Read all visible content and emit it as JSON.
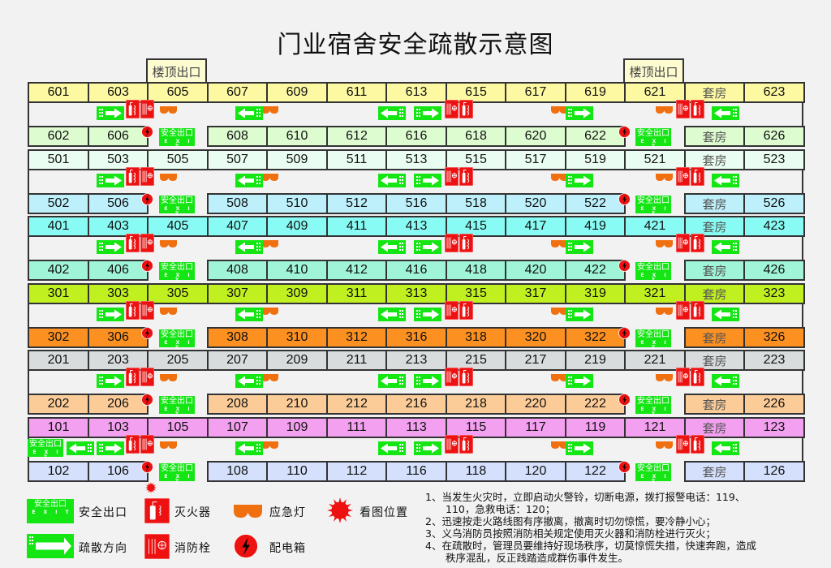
{
  "title": "门业宿舍安全疏散示意图",
  "roof_exit_label": "楼顶出口",
  "exit_sign": {
    "cn": "安全出口",
    "en": "E X I T"
  },
  "colors": {
    "exit_green": "#14e614",
    "fire_red": "#ee1111",
    "light_orange": "#f07010"
  },
  "floors": [
    {
      "floor": 6,
      "top_color": "#fdf9a2",
      "bottom_color": "#ddfcd0",
      "top": [
        "601",
        "603",
        "605",
        "607",
        "609",
        "611",
        "613",
        "615",
        "617",
        "619",
        "621",
        "套房",
        "623"
      ],
      "bottom": [
        "602",
        "606",
        null,
        "608",
        "610",
        "612",
        "616",
        "618",
        "620",
        "622",
        null,
        "套房",
        "626"
      ]
    },
    {
      "floor": 5,
      "top_color": "#eafdf2",
      "bottom_color": "#bdf0fa",
      "top": [
        "501",
        "503",
        "505",
        "507",
        "509",
        "511",
        "513",
        "515",
        "517",
        "519",
        "521",
        "套房",
        "523"
      ],
      "bottom": [
        "502",
        "506",
        null,
        "508",
        "510",
        "512",
        "516",
        "518",
        "520",
        "522",
        null,
        "套房",
        "526"
      ]
    },
    {
      "floor": 4,
      "top_color": "#88fcf4",
      "bottom_color": "#a0f4d8",
      "top": [
        "401",
        "403",
        "405",
        "407",
        "409",
        "411",
        "413",
        "415",
        "417",
        "419",
        "421",
        "套房",
        "423"
      ],
      "bottom": [
        "402",
        "406",
        null,
        "408",
        "410",
        "412",
        "416",
        "418",
        "420",
        "422",
        null,
        "套房",
        "426"
      ]
    },
    {
      "floor": 3,
      "top_color": "#c0f020",
      "bottom_color": "#fc9020",
      "top": [
        "301",
        "303",
        "305",
        "307",
        "309",
        "311",
        "313",
        "315",
        "317",
        "319",
        "321",
        "套房",
        "323"
      ],
      "bottom": [
        "302",
        "306",
        null,
        "308",
        "310",
        "312",
        "316",
        "318",
        "320",
        "322",
        null,
        "套房",
        "326"
      ]
    },
    {
      "floor": 2,
      "top_color": "#d8dcdc",
      "bottom_color": "#fccc98",
      "top": [
        "201",
        "203",
        "205",
        "207",
        "209",
        "211",
        "213",
        "215",
        "217",
        "219",
        "221",
        "套房",
        "223"
      ],
      "bottom": [
        "202",
        "206",
        null,
        "208",
        "210",
        "212",
        "216",
        "218",
        "220",
        "222",
        null,
        "套房",
        "226"
      ]
    },
    {
      "floor": 1,
      "top_color": "#f4a0f0",
      "bottom_color": "#d4e0fc",
      "top": [
        "101",
        "103",
        "105",
        "107",
        "109",
        "111",
        "113",
        "115",
        "117",
        "119",
        "121",
        "套房",
        "123"
      ],
      "bottom": [
        "102",
        "106",
        null,
        "108",
        "110",
        "112",
        "116",
        "118",
        "120",
        "122",
        null,
        "套房",
        "126"
      ]
    }
  ],
  "legend": {
    "exit": "安全出口",
    "extinguisher": "灭火器",
    "emergency_light": "应急灯",
    "you_are_here": "看图位置",
    "direction": "疏散方向",
    "hydrant": "消防栓",
    "distribution_box": "配电箱"
  },
  "notes": [
    "1、当发生火灾时，立即启动火警铃，切断电源，拨打报警电话：119、",
    "　　110，急救电话：120；",
    "2、迅速按走火路线图有序撤离，撤离时切勿惊慌，要冷静小心；",
    "3、义乌消防员按照消防相关规定使用灭火器和消防栓进行灭火；",
    "4、在疏散时，管理员要维持好现场秩序，切莫惊慌失措，快速奔跑，造成",
    "　　秩序混乱，反正践踏造成群伤事件发生。"
  ]
}
